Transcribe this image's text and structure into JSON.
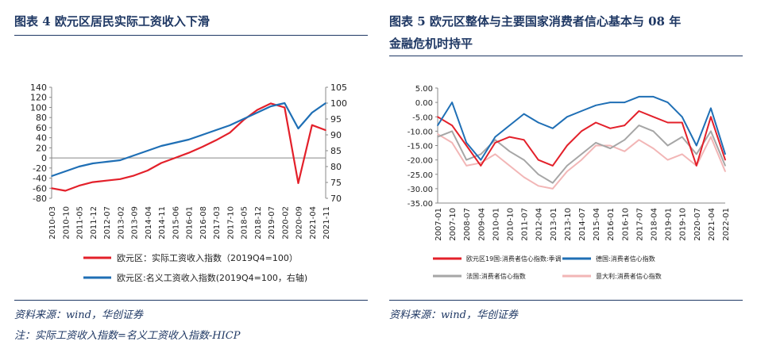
{
  "left": {
    "title": "图表 4   欧元区居民实际工资收入下滑",
    "source": "资料来源：wind，华创证券",
    "note": "注：实际工资收入指数=名义工资收入指数-HICP"
  },
  "right": {
    "title_line1": "图表 5   欧元区整体与主要国家消费者信心基本与 08 年",
    "title_line2": "金融危机时持平",
    "source": "资料来源：wind，华创证券"
  },
  "chart_data": [
    {
      "type": "line",
      "x": [
        "2010-03",
        "2010-10",
        "2011-05",
        "2011-12",
        "2012-07",
        "2013-02",
        "2013-09",
        "2014-04",
        "2014-11",
        "2015-06",
        "2016-01",
        "2016-08",
        "2017-03",
        "2017-10",
        "2018-05",
        "2018-12",
        "2019-07",
        "2020-02",
        "2020-09",
        "2021-04",
        "2021-11"
      ],
      "xticks": [
        "2010-03",
        "2010-10",
        "2011-05",
        "2011-12",
        "2012-07",
        "2013-02",
        "2013-09",
        "2014-04",
        "2014-11",
        "2015-06",
        "2016-01",
        "2016-08",
        "2017-03",
        "2017-10",
        "2018-05",
        "2018-12",
        "2019-07",
        "2020-02",
        "2020-09",
        "2021-04",
        "2021-11"
      ],
      "series": [
        {
          "name": "欧元区：实际工资收入指数（2019Q4=100）",
          "axis": "left",
          "color": "#e3202a",
          "values": [
            -60,
            -65,
            -55,
            -48,
            -45,
            -42,
            -35,
            -25,
            -10,
            0,
            10,
            22,
            35,
            50,
            75,
            95,
            108,
            100,
            -50,
            65,
            55
          ]
        },
        {
          "name": "欧元区:名义工资收入指数(2019Q4=100，右轴)",
          "axis": "right",
          "color": "#1f6fb5",
          "values": [
            77,
            78.5,
            80,
            81,
            81.5,
            82,
            83.5,
            85,
            86.5,
            87.5,
            88.5,
            90,
            91.5,
            93,
            95,
            97,
            99,
            100,
            92,
            97,
            100
          ]
        }
      ],
      "ylim": [
        -80,
        140
      ],
      "yticks": [
        -80,
        -60,
        -40,
        -20,
        0,
        20,
        40,
        60,
        80,
        100,
        120,
        140
      ],
      "y2lim": [
        70,
        105
      ],
      "y2ticks": [
        70,
        75,
        80,
        85,
        90,
        95,
        100,
        105
      ]
    },
    {
      "type": "line",
      "x": [
        "2007-01",
        "2007-10",
        "2008-07",
        "2009-04",
        "2010-01",
        "2010-10",
        "2011-07",
        "2012-04",
        "2013-01",
        "2013-10",
        "2014-07",
        "2015-04",
        "2016-01",
        "2016-10",
        "2017-07",
        "2018-04",
        "2019-01",
        "2019-10",
        "2020-07",
        "2021-04",
        "2022-01"
      ],
      "xticks": [
        "2007-01",
        "2007-10",
        "2008-07",
        "2009-04",
        "2010-01",
        "2010-10",
        "2011-07",
        "2012-04",
        "2013-01",
        "2013-10",
        "2014-07",
        "2015-04",
        "2016-01",
        "2016-10",
        "2017-07",
        "2018-04",
        "2019-01",
        "2019-10",
        "2020-07",
        "2021-04",
        "2022-01"
      ],
      "series": [
        {
          "name": "欧元区19国:消费者信心指数:季调",
          "color": "#e3202a",
          "values": [
            -5,
            -8,
            -15,
            -22,
            -14,
            -12,
            -13,
            -20,
            -22,
            -15,
            -10,
            -7,
            -9,
            -8,
            -3,
            -5,
            -7,
            -7,
            -22,
            -5,
            -20
          ]
        },
        {
          "name": "德国:消费者信心指数",
          "color": "#1f6fb5",
          "values": [
            -8,
            0,
            -14,
            -20,
            -12,
            -8,
            -4,
            -7,
            -9,
            -5,
            -3,
            -1,
            0,
            0,
            2,
            2,
            0,
            -5,
            -15,
            -2,
            -18
          ]
        },
        {
          "name": "法国:消费者信心指数",
          "color": "#a6a6a6",
          "values": [
            -12,
            -10,
            -20,
            -18,
            -13,
            -17,
            -20,
            -25,
            -28,
            -22,
            -18,
            -14,
            -16,
            -13,
            -8,
            -10,
            -15,
            -12,
            -18,
            -10,
            -22
          ]
        },
        {
          "name": "意大利:消费者信心指数",
          "color": "#f2b6b6",
          "values": [
            -11,
            -14,
            -22,
            -21,
            -18,
            -22,
            -26,
            -29,
            -30,
            -24,
            -20,
            -15,
            -15,
            -17,
            -13,
            -16,
            -20,
            -18,
            -22,
            -12,
            -24
          ]
        }
      ],
      "ylim": [
        -35,
        5
      ],
      "yticks": [
        5,
        0,
        -5,
        -10,
        -15,
        -20,
        -25,
        -30,
        -35
      ]
    }
  ]
}
